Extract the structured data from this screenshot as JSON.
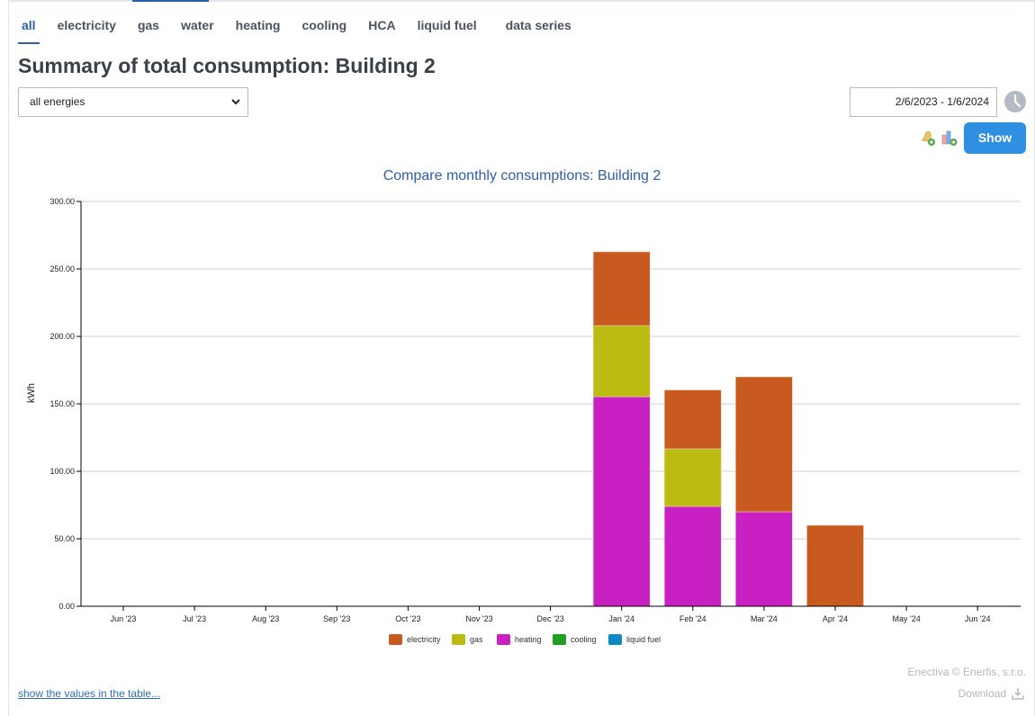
{
  "tabs": [
    {
      "label": "all",
      "active": true
    },
    {
      "label": "electricity",
      "active": false
    },
    {
      "label": "gas",
      "active": false
    },
    {
      "label": "water",
      "active": false
    },
    {
      "label": "heating",
      "active": false
    },
    {
      "label": "cooling",
      "active": false
    },
    {
      "label": "HCA",
      "active": false
    },
    {
      "label": "liquid fuel",
      "active": false
    },
    {
      "label": "data series",
      "active": false
    }
  ],
  "page_title": "Summary of total consumption: Building 2",
  "energy_select": {
    "value": "all energies"
  },
  "date_range": {
    "value": "2/6/2023 - 1/6/2024"
  },
  "toolbar": {
    "show_label": "Show",
    "icons": [
      "bell-add-icon",
      "chart-add-icon",
      "clock-icon"
    ]
  },
  "footer": {
    "credit": "Enectiva © Enerfis, s.r.o.",
    "download_label": "Download",
    "show_table_link": "show the values in the table..."
  },
  "chart_data": {
    "type": "bar",
    "stacked": true,
    "title": "Compare monthly consumptions: Building 2",
    "xlabel": "",
    "ylabel": "kWh",
    "ylim": [
      0,
      300
    ],
    "yticks": [
      "0.00",
      "50.00",
      "100.00",
      "150.00",
      "200.00",
      "250.00",
      "300.00"
    ],
    "grid": true,
    "legend_position": "bottom-center",
    "categories": [
      "Jun '23",
      "Jul '23",
      "Aug '23",
      "Sep '23",
      "Oct '23",
      "Nov '23",
      "Dec '23",
      "Jan '24",
      "Feb '24",
      "Mar '24",
      "Apr '24",
      "May '24",
      "Jun '24"
    ],
    "series": [
      {
        "name": "heating",
        "color": "#c920c4",
        "values": [
          0,
          0,
          0,
          0,
          0,
          0,
          0,
          155.3,
          74.0,
          70.0,
          0,
          0,
          0
        ]
      },
      {
        "name": "gas",
        "color": "#bcbb12",
        "values": [
          0,
          0,
          0,
          0,
          0,
          0,
          0,
          52.7,
          42.7,
          0,
          0,
          0,
          0
        ]
      },
      {
        "name": "electricity",
        "color": "#c95a1f",
        "values": [
          0,
          0,
          0,
          0,
          0,
          0,
          0,
          54.7,
          43.6,
          100.0,
          60.0,
          0,
          0
        ]
      },
      {
        "name": "cooling",
        "color": "#20a020",
        "values": [
          0,
          0,
          0,
          0,
          0,
          0,
          0,
          0,
          0,
          0,
          0,
          0,
          0
        ]
      },
      {
        "name": "liquid fuel",
        "color": "#0e8ac9",
        "values": [
          0,
          0,
          0,
          0,
          0,
          0,
          0,
          0,
          0,
          0,
          0,
          0,
          0
        ]
      }
    ],
    "legend_order": [
      "electricity",
      "gas",
      "heating",
      "cooling",
      "liquid fuel"
    ]
  }
}
